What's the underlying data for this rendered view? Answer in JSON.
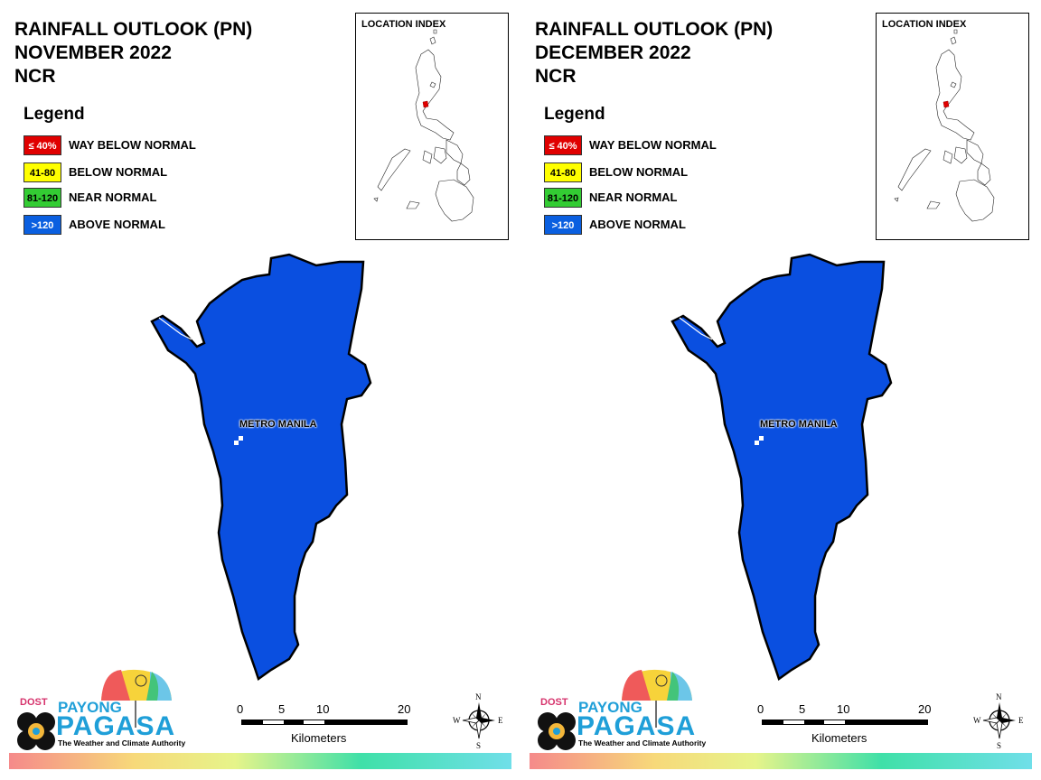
{
  "panels": [
    {
      "title_line1": "RAINFALL OUTLOOK (PN)",
      "title_line2": "NOVEMBER 2022",
      "title_line3": "NCR",
      "fill_color": "#0a4fe0",
      "fill_class": "ABOVE NORMAL"
    },
    {
      "title_line1": "RAINFALL OUTLOOK (PN)",
      "title_line2": "DECEMBER 2022",
      "title_line3": "NCR",
      "fill_color": "#0a4fe0",
      "fill_class": "ABOVE NORMAL"
    }
  ],
  "legend": {
    "title": "Legend",
    "items": [
      {
        "range": "≤ 40%",
        "label": "WAY BELOW NORMAL",
        "color": "#e00000",
        "text_color": "#ffffff"
      },
      {
        "range": "41-80",
        "label": "BELOW NORMAL",
        "color": "#ffff00",
        "text_color": "#000000"
      },
      {
        "range": "81-120",
        "label": "NEAR NORMAL",
        "color": "#33cc33",
        "text_color": "#000000"
      },
      {
        "range": ">120",
        "label": "ABOVE NORMAL",
        "color": "#0a5fe0",
        "text_color": "#ffffff"
      }
    ]
  },
  "inset": {
    "title": "LOCATION INDEX"
  },
  "map": {
    "place_label": "METRO MANILA"
  },
  "scale": {
    "ticks": [
      "0",
      "5",
      "10",
      "20"
    ],
    "unit": "Kilometers"
  },
  "compass": {
    "n": "N",
    "s": "S",
    "e": "E",
    "w": "W"
  },
  "logo": {
    "dost": "DOST",
    "payong": "PAYONG",
    "pagasa": "PAGASA",
    "tagline": "The Weather and Climate Authority"
  }
}
